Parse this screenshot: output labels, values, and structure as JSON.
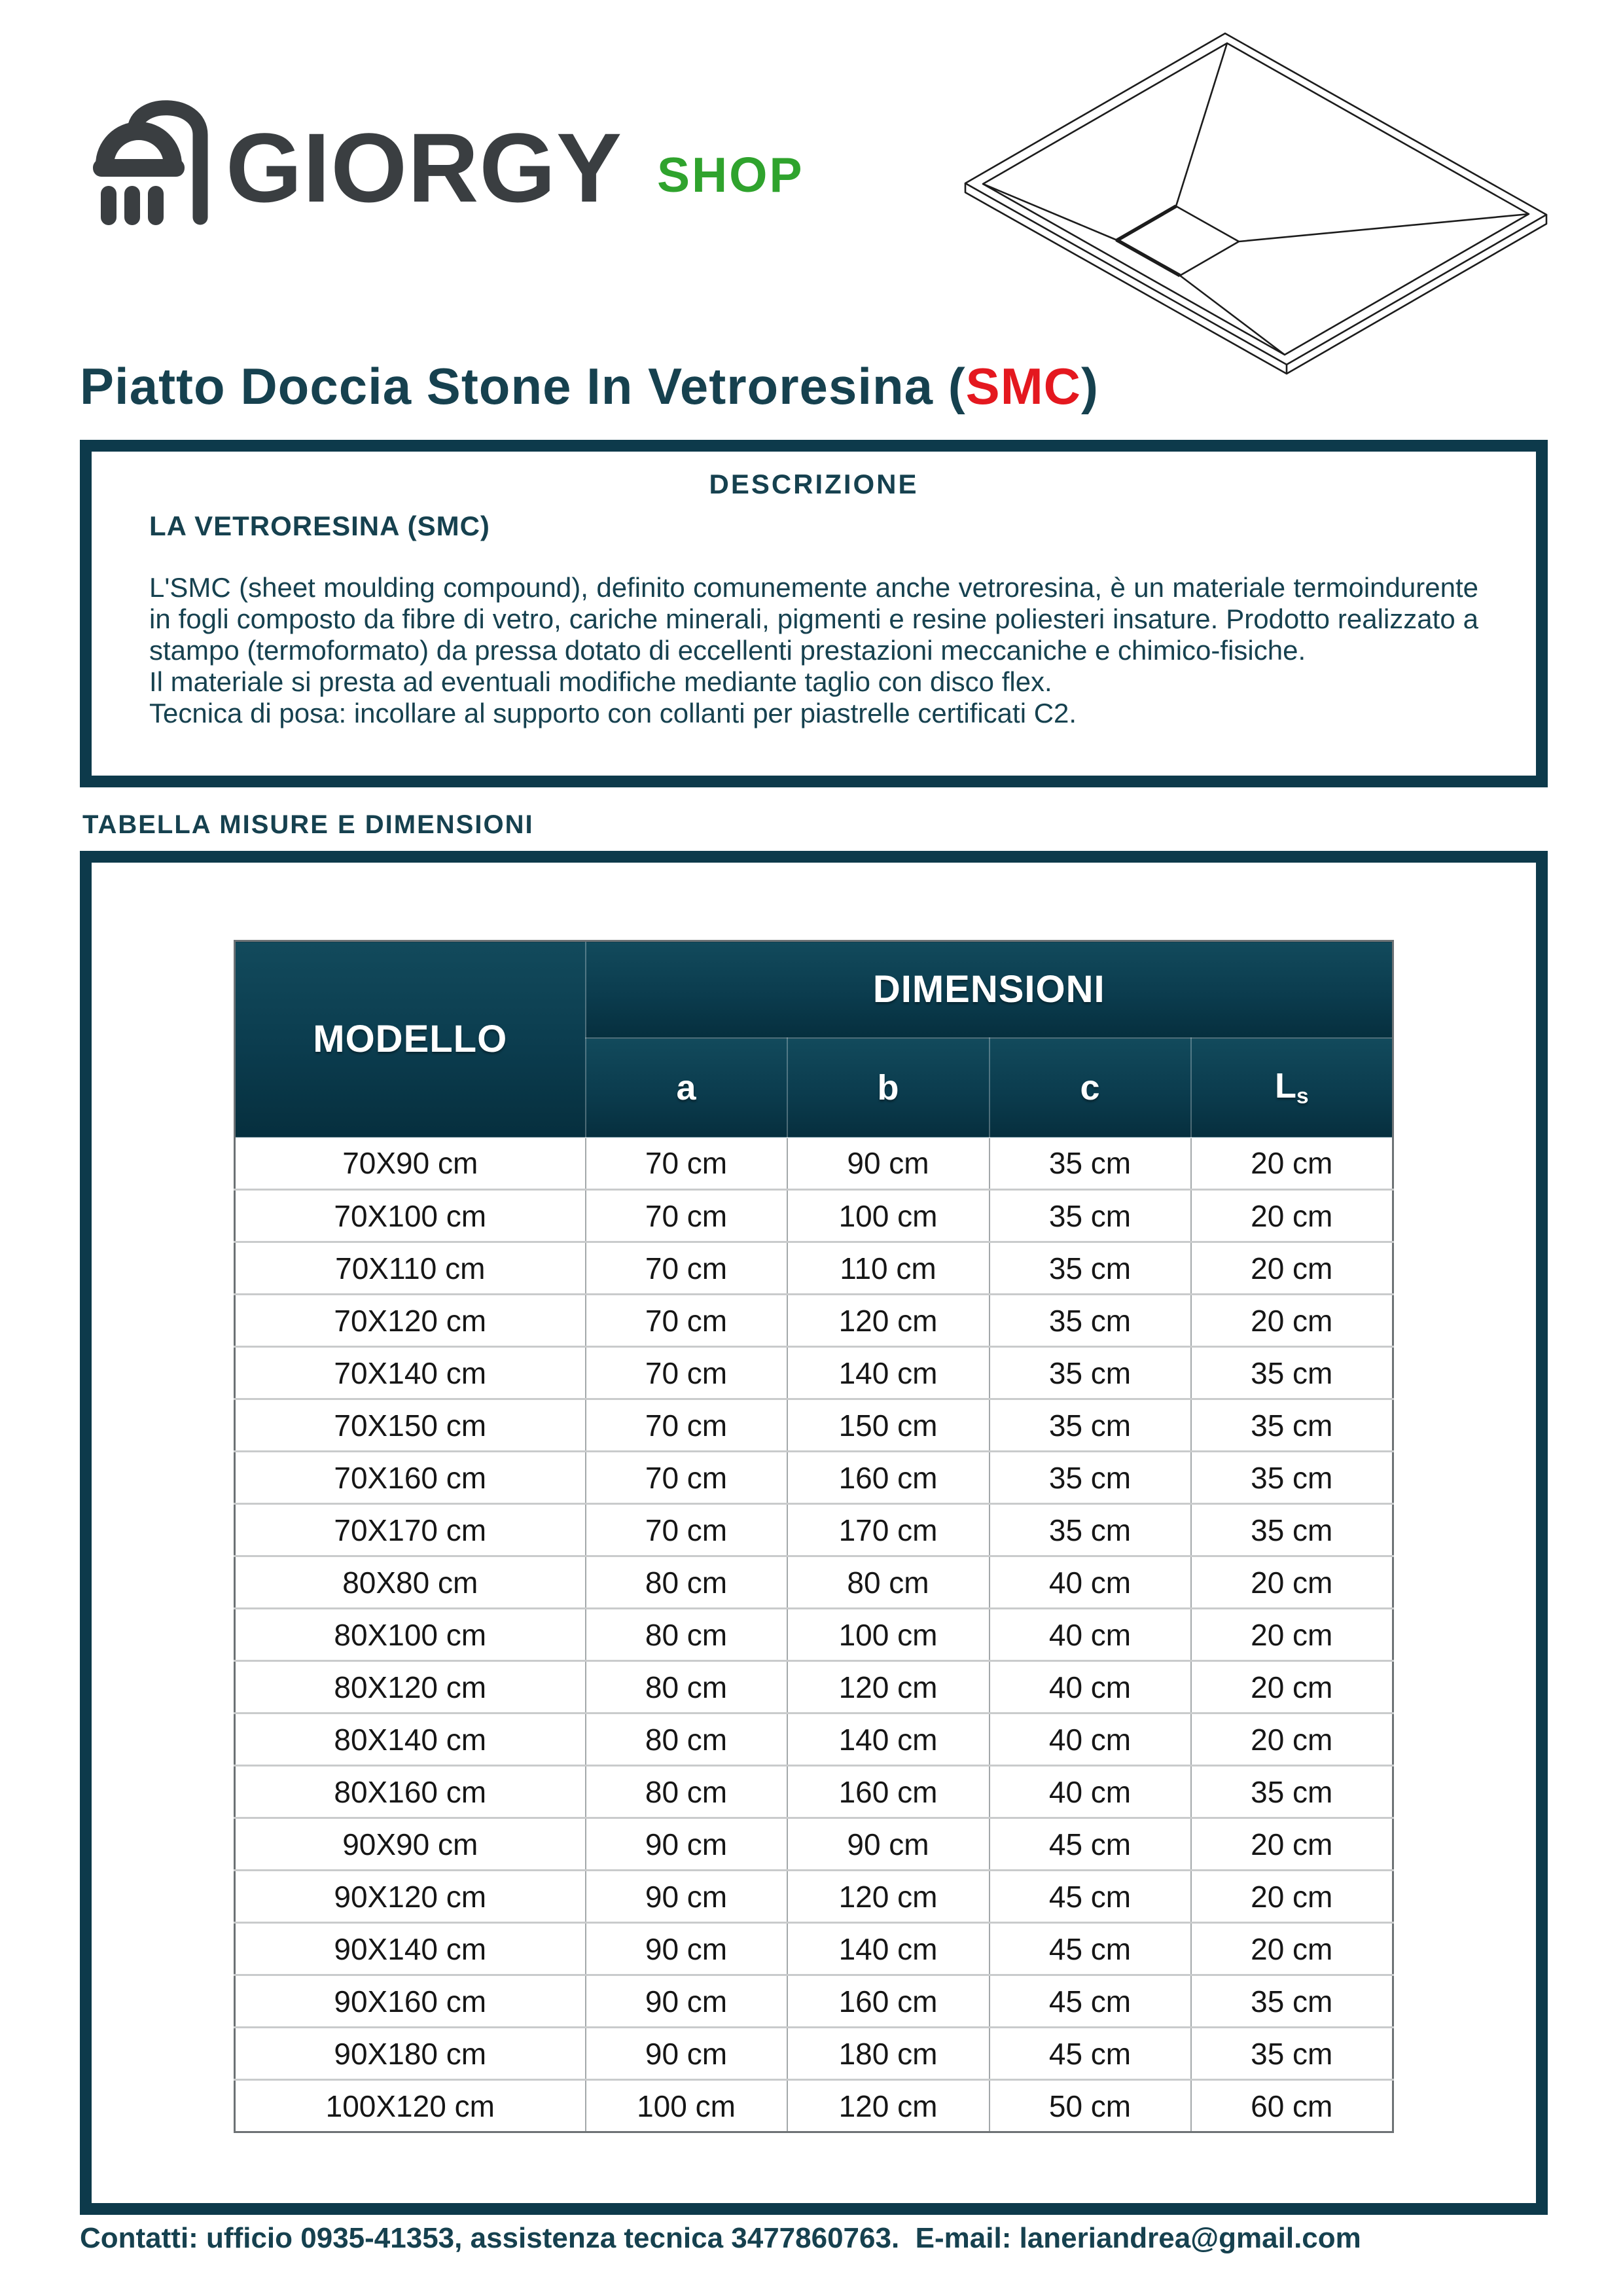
{
  "brand": {
    "name": "GIORGY",
    "suffix": "SHOP"
  },
  "title": {
    "prefix": "Piatto Doccia Stone In Vetroresina ",
    "paren_open": "(",
    "highlight": "SMC",
    "paren_close": ")"
  },
  "description": {
    "heading": "DESCRIZIONE",
    "subheading": "LA VETRORESINA (SMC)",
    "paragraph": "L'SMC (sheet moulding compound), definito comunemente anche vetroresina, è un materiale termoindurente in fogli composto da fibre di vetro, cariche minerali, pigmenti e resine poliesteri insature. Prodotto realizzato a stampo (termoformato) da pressa dotato di eccellenti prestazioni meccaniche e chimico-fisiche.",
    "line2": "Il materiale si presta ad eventuali modifiche mediante taglio con disco flex.",
    "line3": "Tecnica di posa: incollare al supporto con collanti per piastrelle certificati C2."
  },
  "table_section": {
    "label": "TABELLA MISURE E DIMENSIONI"
  },
  "table": {
    "col_model": "MODELLO",
    "col_dimensions": "DIMENSIONI",
    "col_a": "a",
    "col_b": "b",
    "col_c": "c",
    "col_ls_main": "L",
    "col_ls_sub": "s",
    "rows": [
      {
        "model": "70X90 cm",
        "a": "70 cm",
        "b": "90 cm",
        "c": "35 cm",
        "ls": "20 cm"
      },
      {
        "model": "70X100 cm",
        "a": "70 cm",
        "b": "100 cm",
        "c": "35 cm",
        "ls": "20 cm"
      },
      {
        "model": "70X110 cm",
        "a": "70 cm",
        "b": "110 cm",
        "c": "35 cm",
        "ls": "20 cm"
      },
      {
        "model": "70X120 cm",
        "a": "70 cm",
        "b": "120 cm",
        "c": "35 cm",
        "ls": "20 cm"
      },
      {
        "model": "70X140 cm",
        "a": "70 cm",
        "b": "140 cm",
        "c": "35 cm",
        "ls": "35 cm"
      },
      {
        "model": "70X150 cm",
        "a": "70 cm",
        "b": "150 cm",
        "c": "35 cm",
        "ls": "35 cm"
      },
      {
        "model": "70X160 cm",
        "a": "70 cm",
        "b": "160 cm",
        "c": "35 cm",
        "ls": "35 cm"
      },
      {
        "model": "70X170 cm",
        "a": "70 cm",
        "b": "170 cm",
        "c": "35 cm",
        "ls": "35 cm"
      },
      {
        "model": "80X80 cm",
        "a": "80 cm",
        "b": "80 cm",
        "c": "40 cm",
        "ls": "20 cm"
      },
      {
        "model": "80X100 cm",
        "a": "80 cm",
        "b": "100 cm",
        "c": "40 cm",
        "ls": "20 cm"
      },
      {
        "model": "80X120 cm",
        "a": "80 cm",
        "b": "120 cm",
        "c": "40 cm",
        "ls": "20 cm"
      },
      {
        "model": "80X140 cm",
        "a": "80 cm",
        "b": "140 cm",
        "c": "40 cm",
        "ls": "20 cm"
      },
      {
        "model": "80X160 cm",
        "a": "80 cm",
        "b": "160 cm",
        "c": "40 cm",
        "ls": "35 cm"
      },
      {
        "model": "90X90 cm",
        "a": "90 cm",
        "b": "90 cm",
        "c": "45 cm",
        "ls": "20 cm"
      },
      {
        "model": "90X120 cm",
        "a": "90 cm",
        "b": "120 cm",
        "c": "45 cm",
        "ls": "20 cm"
      },
      {
        "model": "90X140 cm",
        "a": "90 cm",
        "b": "140 cm",
        "c": "45 cm",
        "ls": "20 cm"
      },
      {
        "model": "90X160 cm",
        "a": "90 cm",
        "b": "160 cm",
        "c": "45 cm",
        "ls": "35 cm"
      },
      {
        "model": "90X180 cm",
        "a": "90 cm",
        "b": "180 cm",
        "c": "45 cm",
        "ls": "35 cm"
      },
      {
        "model": "100X120 cm",
        "a": "100 cm",
        "b": "120 cm",
        "c": "50 cm",
        "ls": "60 cm"
      }
    ]
  },
  "footer": {
    "text": "Contatti: ufficio 0935-41353, assistenza tecnica 3477860763.  E-mail: laneriandrea@gmail.com"
  },
  "colors": {
    "teal": "#0d3a4b",
    "tealText": "#16414f",
    "ink": "#161616",
    "gray": "#3a3e41",
    "green": "#2fa32d",
    "red": "#e4181f",
    "lineLight": "#c9cbcc",
    "lineMid": "#a3a8aa",
    "lineDark": "#6d7275"
  }
}
